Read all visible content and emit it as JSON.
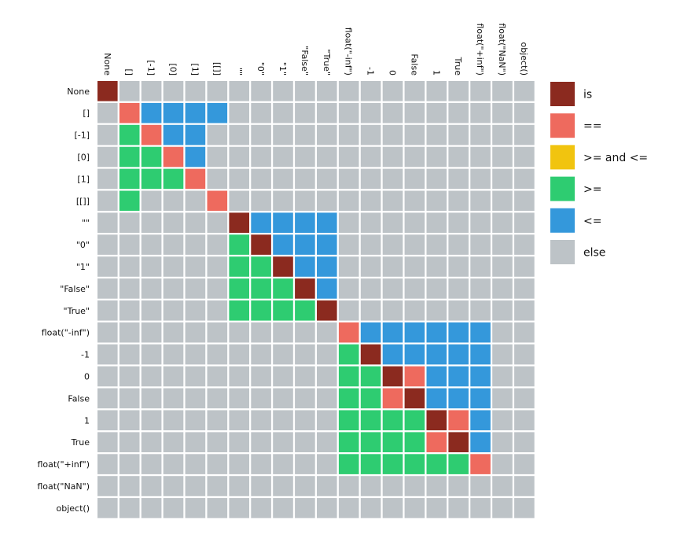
{
  "chart_data": {
    "type": "heatmap",
    "labels": [
      "None",
      "[]",
      "[-1]",
      "[0]",
      "[1]",
      "[[]]",
      "\"\"",
      "\"0\"",
      "\"1\"",
      "\"False\"",
      "\"True\"",
      "float(\"-inf\")",
      "-1",
      "0",
      "False",
      "1",
      "True",
      "float(\"+inf\")",
      "float(\"NaN\")",
      "object()"
    ],
    "relation_colors": {
      "is": "#8b2a1f",
      "==": "#ee6a5e",
      ">= and <=": "#f1c40f",
      ">=": "#2ecc71",
      "<=": "#3498db",
      "else": "#bdc3c7"
    },
    "legend": [
      {
        "key": "is",
        "label": "is"
      },
      {
        "key": "==",
        "label": "=="
      },
      {
        "key": ">= and <=",
        "label": ">= and <="
      },
      {
        "key": ">=",
        "label": ">="
      },
      {
        "key": "<=",
        "label": "<="
      },
      {
        "key": "else",
        "label": "else"
      }
    ],
    "matrix": [
      [
        "is",
        "else",
        "else",
        "else",
        "else",
        "else",
        "else",
        "else",
        "else",
        "else",
        "else",
        "else",
        "else",
        "else",
        "else",
        "else",
        "else",
        "else",
        "else",
        "else"
      ],
      [
        "else",
        "==",
        "<=",
        "<=",
        "<=",
        "<=",
        "else",
        "else",
        "else",
        "else",
        "else",
        "else",
        "else",
        "else",
        "else",
        "else",
        "else",
        "else",
        "else",
        "else"
      ],
      [
        "else",
        ">=",
        "==",
        "<=",
        "<=",
        "else",
        "else",
        "else",
        "else",
        "else",
        "else",
        "else",
        "else",
        "else",
        "else",
        "else",
        "else",
        "else",
        "else",
        "else"
      ],
      [
        "else",
        ">=",
        ">=",
        "==",
        "<=",
        "else",
        "else",
        "else",
        "else",
        "else",
        "else",
        "else",
        "else",
        "else",
        "else",
        "else",
        "else",
        "else",
        "else",
        "else"
      ],
      [
        "else",
        ">=",
        ">=",
        ">=",
        "==",
        "else",
        "else",
        "else",
        "else",
        "else",
        "else",
        "else",
        "else",
        "else",
        "else",
        "else",
        "else",
        "else",
        "else",
        "else"
      ],
      [
        "else",
        ">=",
        "else",
        "else",
        "else",
        "==",
        "else",
        "else",
        "else",
        "else",
        "else",
        "else",
        "else",
        "else",
        "else",
        "else",
        "else",
        "else",
        "else",
        "else"
      ],
      [
        "else",
        "else",
        "else",
        "else",
        "else",
        "else",
        "is",
        "<=",
        "<=",
        "<=",
        "<=",
        "else",
        "else",
        "else",
        "else",
        "else",
        "else",
        "else",
        "else",
        "else"
      ],
      [
        "else",
        "else",
        "else",
        "else",
        "else",
        "else",
        ">=",
        "is",
        "<=",
        "<=",
        "<=",
        "else",
        "else",
        "else",
        "else",
        "else",
        "else",
        "else",
        "else",
        "else"
      ],
      [
        "else",
        "else",
        "else",
        "else",
        "else",
        "else",
        ">=",
        ">=",
        "is",
        "<=",
        "<=",
        "else",
        "else",
        "else",
        "else",
        "else",
        "else",
        "else",
        "else",
        "else"
      ],
      [
        "else",
        "else",
        "else",
        "else",
        "else",
        "else",
        ">=",
        ">=",
        ">=",
        "is",
        "<=",
        "else",
        "else",
        "else",
        "else",
        "else",
        "else",
        "else",
        "else",
        "else"
      ],
      [
        "else",
        "else",
        "else",
        "else",
        "else",
        "else",
        ">=",
        ">=",
        ">=",
        ">=",
        "is",
        "else",
        "else",
        "else",
        "else",
        "else",
        "else",
        "else",
        "else",
        "else"
      ],
      [
        "else",
        "else",
        "else",
        "else",
        "else",
        "else",
        "else",
        "else",
        "else",
        "else",
        "else",
        "==",
        "<=",
        "<=",
        "<=",
        "<=",
        "<=",
        "<=",
        "else",
        "else"
      ],
      [
        "else",
        "else",
        "else",
        "else",
        "else",
        "else",
        "else",
        "else",
        "else",
        "else",
        "else",
        ">=",
        "is",
        "<=",
        "<=",
        "<=",
        "<=",
        "<=",
        "else",
        "else"
      ],
      [
        "else",
        "else",
        "else",
        "else",
        "else",
        "else",
        "else",
        "else",
        "else",
        "else",
        "else",
        ">=",
        ">=",
        "is",
        "==",
        "<=",
        "<=",
        "<=",
        "else",
        "else"
      ],
      [
        "else",
        "else",
        "else",
        "else",
        "else",
        "else",
        "else",
        "else",
        "else",
        "else",
        "else",
        ">=",
        ">=",
        "==",
        "is",
        "<=",
        "<=",
        "<=",
        "else",
        "else"
      ],
      [
        "else",
        "else",
        "else",
        "else",
        "else",
        "else",
        "else",
        "else",
        "else",
        "else",
        "else",
        ">=",
        ">=",
        ">=",
        ">=",
        "is",
        "==",
        "<=",
        "else",
        "else"
      ],
      [
        "else",
        "else",
        "else",
        "else",
        "else",
        "else",
        "else",
        "else",
        "else",
        "else",
        "else",
        ">=",
        ">=",
        ">=",
        ">=",
        "==",
        "is",
        "<=",
        "else",
        "else"
      ],
      [
        "else",
        "else",
        "else",
        "else",
        "else",
        "else",
        "else",
        "else",
        "else",
        "else",
        "else",
        ">=",
        ">=",
        ">=",
        ">=",
        ">=",
        ">=",
        "==",
        "else",
        "else"
      ],
      [
        "else",
        "else",
        "else",
        "else",
        "else",
        "else",
        "else",
        "else",
        "else",
        "else",
        "else",
        "else",
        "else",
        "else",
        "else",
        "else",
        "else",
        "else",
        "else",
        "else"
      ],
      [
        "else",
        "else",
        "else",
        "else",
        "else",
        "else",
        "else",
        "else",
        "else",
        "else",
        "else",
        "else",
        "else",
        "else",
        "else",
        "else",
        "else",
        "else",
        "else",
        "else"
      ]
    ]
  }
}
